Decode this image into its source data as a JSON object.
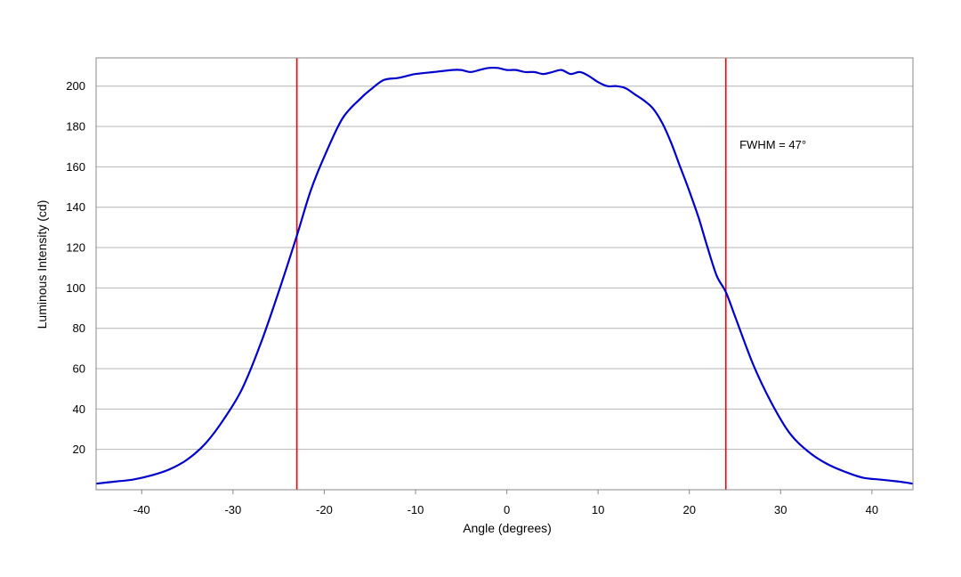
{
  "chart_data": {
    "type": "line",
    "title": "",
    "xlabel": "Angle (degrees)",
    "ylabel": "Luminous Intensity (cd)",
    "xlim": [
      -45,
      44.5
    ],
    "ylim": [
      0,
      214
    ],
    "xticks": [
      -40,
      -30,
      -20,
      -10,
      0,
      10,
      20,
      30,
      40
    ],
    "yticks": [
      20,
      40,
      60,
      80,
      100,
      120,
      140,
      160,
      180,
      200
    ],
    "grid": "horizontal",
    "legend": "none",
    "series": [
      {
        "color": "#0000cc",
        "x": [
          -45,
          -43,
          -41,
          -39,
          -37,
          -35,
          -33,
          -31,
          -29,
          -27,
          -25,
          -23,
          -21.5,
          -20,
          -18,
          -16,
          -15,
          -13.5,
          -12,
          -11,
          -10,
          -8,
          -6,
          -5,
          -4,
          -3,
          -2,
          -1,
          0,
          1,
          2,
          3,
          4,
          5,
          6,
          7,
          8,
          9,
          10,
          11,
          12,
          13,
          14,
          15,
          16,
          17,
          18,
          19,
          20,
          21,
          22,
          23,
          24,
          25,
          27,
          29,
          31,
          33,
          35,
          37,
          39,
          41,
          43,
          44.5
        ],
        "values": [
          3,
          4,
          5,
          7,
          10,
          15,
          23,
          35,
          50,
          72,
          98,
          126,
          148,
          165,
          184,
          194,
          198,
          203,
          204,
          205,
          206,
          207,
          208,
          208,
          207,
          208,
          209,
          209,
          208,
          208,
          207,
          207,
          206,
          207,
          208,
          206,
          207,
          205,
          202,
          200,
          200,
          199,
          196,
          193,
          189,
          182,
          172,
          160,
          148,
          135,
          120,
          106,
          98,
          86,
          62,
          43,
          28,
          19,
          13,
          9,
          6,
          5,
          4,
          3
        ]
      }
    ],
    "vlines": [
      {
        "x": -23,
        "color": "#ff0000"
      },
      {
        "x": 24,
        "color": "#ff0000"
      }
    ],
    "annotations": [
      {
        "text": "FWHM = 47°",
        "x": 25.5,
        "y": 169
      }
    ]
  }
}
